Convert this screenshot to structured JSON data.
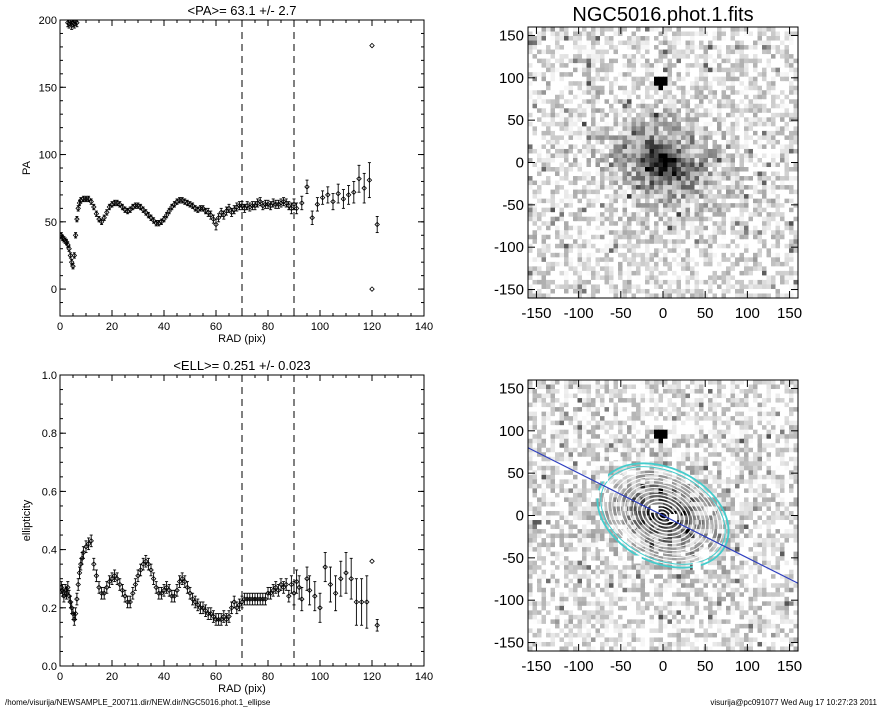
{
  "footer": {
    "left": "/home/visurija/NEWSAMPLE_200711.dir/NEW.dir/NGC5016.phot.1_ellipse",
    "right": "visurija@pc091077  Wed Aug 17 10:27:23 2011"
  },
  "chart_data": [
    {
      "type": "scatter",
      "title": "<PA>=  63.1 +/-   2.7",
      "xlabel": "RAD (pix)",
      "ylabel": "PA",
      "xlim": [
        0,
        140
      ],
      "ylim": [
        -20,
        200
      ],
      "xticks": [
        "0",
        "20",
        "40",
        "60",
        "80",
        "100",
        "120",
        "140"
      ],
      "yticks": [
        "0",
        "50",
        "100",
        "150",
        "200"
      ],
      "vlines": [
        70,
        90
      ],
      "points": [
        [
          0.5,
          40,
          2
        ],
        [
          1,
          38,
          2
        ],
        [
          1.5,
          37,
          2
        ],
        [
          2,
          36,
          2
        ],
        [
          2.5,
          35,
          2
        ],
        [
          3,
          33,
          2
        ],
        [
          3.5,
          30,
          2
        ],
        [
          4,
          25,
          2
        ],
        [
          4.5,
          20,
          2
        ],
        [
          5,
          17,
          2
        ],
        [
          5.5,
          25,
          2
        ],
        [
          6,
          40,
          2
        ],
        [
          6.5,
          52,
          2
        ],
        [
          7,
          60,
          2
        ],
        [
          7.5,
          64,
          2
        ],
        [
          8,
          66,
          2
        ],
        [
          9,
          67,
          2
        ],
        [
          10,
          67,
          2
        ],
        [
          11,
          67,
          2
        ],
        [
          12,
          65,
          2
        ],
        [
          13,
          61,
          2
        ],
        [
          14,
          56,
          2
        ],
        [
          15,
          52,
          2
        ],
        [
          16,
          50,
          2
        ],
        [
          17,
          53,
          2
        ],
        [
          18,
          57,
          2
        ],
        [
          19,
          61,
          2
        ],
        [
          20,
          63,
          2
        ],
        [
          21,
          64,
          2
        ],
        [
          22,
          64,
          2
        ],
        [
          23,
          63,
          2
        ],
        [
          24,
          61,
          2
        ],
        [
          25,
          59,
          2
        ],
        [
          26,
          58,
          2
        ],
        [
          27,
          59,
          2
        ],
        [
          28,
          61,
          2
        ],
        [
          29,
          62,
          2
        ],
        [
          30,
          62,
          2
        ],
        [
          31,
          61,
          2
        ],
        [
          32,
          59,
          2
        ],
        [
          33,
          57,
          2
        ],
        [
          34,
          55,
          2
        ],
        [
          35,
          53,
          2
        ],
        [
          36,
          51,
          2
        ],
        [
          37,
          49,
          2
        ],
        [
          38,
          49,
          2
        ],
        [
          39,
          50,
          2
        ],
        [
          40,
          52,
          2
        ],
        [
          41,
          55,
          2
        ],
        [
          42,
          58,
          2
        ],
        [
          43,
          61,
          2
        ],
        [
          44,
          63,
          2
        ],
        [
          45,
          65,
          2
        ],
        [
          46,
          66,
          2
        ],
        [
          47,
          66,
          2
        ],
        [
          48,
          65,
          2
        ],
        [
          49,
          64,
          2
        ],
        [
          50,
          63,
          2
        ],
        [
          51,
          62,
          2
        ],
        [
          52,
          60,
          2
        ],
        [
          53,
          59,
          2
        ],
        [
          54,
          60,
          2
        ],
        [
          55,
          60,
          2
        ],
        [
          56,
          58,
          2
        ],
        [
          57,
          57,
          3
        ],
        [
          58,
          55,
          3
        ],
        [
          59,
          52,
          3
        ],
        [
          60,
          48,
          4
        ],
        [
          61,
          53,
          3
        ],
        [
          62,
          57,
          3
        ],
        [
          63,
          55,
          3
        ],
        [
          64,
          58,
          3
        ],
        [
          65,
          60,
          3
        ],
        [
          66,
          57,
          3
        ],
        [
          67,
          59,
          3
        ],
        [
          68,
          61,
          3
        ],
        [
          69,
          62,
          3
        ],
        [
          70,
          62,
          3
        ],
        [
          71,
          60,
          3
        ],
        [
          72,
          62,
          3
        ],
        [
          73,
          61,
          3
        ],
        [
          74,
          62,
          3
        ],
        [
          75,
          62,
          3
        ],
        [
          76,
          64,
          3
        ],
        [
          77,
          65,
          3
        ],
        [
          78,
          62,
          3
        ],
        [
          79,
          63,
          3
        ],
        [
          80,
          63,
          3
        ],
        [
          81,
          62,
          3
        ],
        [
          82,
          64,
          3
        ],
        [
          83,
          63,
          3
        ],
        [
          84,
          63,
          3
        ],
        [
          85,
          64,
          3
        ],
        [
          86,
          65,
          3
        ],
        [
          87,
          64,
          3
        ],
        [
          88,
          62,
          3
        ],
        [
          89,
          60,
          4
        ],
        [
          90,
          63,
          4
        ],
        [
          91,
          60,
          4
        ],
        [
          93,
          64,
          5
        ],
        [
          95,
          76,
          5
        ],
        [
          97,
          53,
          5
        ],
        [
          99,
          63,
          5
        ],
        [
          101,
          68,
          5
        ],
        [
          103,
          70,
          6
        ],
        [
          105,
          65,
          6
        ],
        [
          107,
          71,
          7
        ],
        [
          109,
          67,
          7
        ],
        [
          111,
          70,
          7
        ],
        [
          113,
          72,
          8
        ],
        [
          115,
          82,
          10
        ],
        [
          117,
          75,
          11
        ],
        [
          119,
          81,
          13
        ],
        [
          120,
          181,
          0
        ],
        [
          120,
          0,
          0
        ],
        [
          122,
          48,
          6
        ],
        [
          3,
          198,
          3
        ],
        [
          3.5,
          197,
          3
        ],
        [
          4,
          199,
          3
        ],
        [
          4.5,
          196,
          3
        ],
        [
          5,
          198,
          3
        ],
        [
          5.5,
          197,
          3
        ],
        [
          6,
          199,
          3
        ],
        [
          6.5,
          198,
          3
        ]
      ]
    },
    {
      "type": "heatmap",
      "title": "NGC5016.phot.1.fits",
      "xlim": [
        -160,
        160
      ],
      "ylim": [
        -160,
        160
      ],
      "xticks": [
        "-150",
        "-100",
        "-50",
        "0",
        "50",
        "100",
        "150"
      ],
      "yticks": [
        "-150",
        "-100",
        "-50",
        "0",
        "50",
        "100",
        "150"
      ],
      "colormap": "grayscale"
    },
    {
      "type": "scatter",
      "title": "<ELL>= 0.251 +/-  0.023",
      "xlabel": "RAD (pix)",
      "ylabel": "ellipticity",
      "xlim": [
        0,
        140
      ],
      "ylim": [
        0,
        1
      ],
      "xticks": [
        "0",
        "20",
        "40",
        "60",
        "80",
        "100",
        "120",
        "140"
      ],
      "yticks": [
        "0.0",
        "0.2",
        "0.4",
        "0.6",
        "0.8",
        "1.0"
      ],
      "vlines": [
        70,
        90
      ],
      "points": [
        [
          0.5,
          0.27,
          0.02
        ],
        [
          1,
          0.26,
          0.02
        ],
        [
          1.5,
          0.24,
          0.02
        ],
        [
          2,
          0.26,
          0.02
        ],
        [
          2.5,
          0.25,
          0.02
        ],
        [
          3,
          0.27,
          0.02
        ],
        [
          3.5,
          0.24,
          0.02
        ],
        [
          4,
          0.22,
          0.02
        ],
        [
          4.5,
          0.2,
          0.02
        ],
        [
          5,
          0.18,
          0.02
        ],
        [
          5.5,
          0.16,
          0.02
        ],
        [
          6,
          0.18,
          0.02
        ],
        [
          6.5,
          0.23,
          0.02
        ],
        [
          7,
          0.28,
          0.02
        ],
        [
          7.5,
          0.32,
          0.02
        ],
        [
          8,
          0.35,
          0.02
        ],
        [
          8.5,
          0.37,
          0.02
        ],
        [
          9,
          0.39,
          0.02
        ],
        [
          10,
          0.41,
          0.02
        ],
        [
          11,
          0.42,
          0.02
        ],
        [
          12,
          0.43,
          0.02
        ],
        [
          13,
          0.35,
          0.02
        ],
        [
          14,
          0.31,
          0.02
        ],
        [
          15,
          0.27,
          0.02
        ],
        [
          16,
          0.25,
          0.02
        ],
        [
          17,
          0.25,
          0.02
        ],
        [
          18,
          0.27,
          0.02
        ],
        [
          19,
          0.29,
          0.02
        ],
        [
          20,
          0.3,
          0.02
        ],
        [
          21,
          0.31,
          0.02
        ],
        [
          22,
          0.3,
          0.02
        ],
        [
          23,
          0.28,
          0.02
        ],
        [
          24,
          0.26,
          0.02
        ],
        [
          25,
          0.24,
          0.02
        ],
        [
          26,
          0.22,
          0.02
        ],
        [
          27,
          0.22,
          0.02
        ],
        [
          28,
          0.25,
          0.02
        ],
        [
          29,
          0.28,
          0.02
        ],
        [
          30,
          0.31,
          0.02
        ],
        [
          31,
          0.33,
          0.02
        ],
        [
          32,
          0.35,
          0.02
        ],
        [
          33,
          0.36,
          0.02
        ],
        [
          34,
          0.35,
          0.02
        ],
        [
          35,
          0.33,
          0.02
        ],
        [
          36,
          0.3,
          0.02
        ],
        [
          37,
          0.27,
          0.02
        ],
        [
          38,
          0.25,
          0.02
        ],
        [
          39,
          0.25,
          0.02
        ],
        [
          40,
          0.26,
          0.02
        ],
        [
          41,
          0.27,
          0.02
        ],
        [
          42,
          0.26,
          0.02
        ],
        [
          43,
          0.24,
          0.02
        ],
        [
          44,
          0.24,
          0.02
        ],
        [
          45,
          0.26,
          0.02
        ],
        [
          46,
          0.29,
          0.02
        ],
        [
          47,
          0.3,
          0.02
        ],
        [
          48,
          0.29,
          0.02
        ],
        [
          49,
          0.27,
          0.02
        ],
        [
          50,
          0.25,
          0.02
        ],
        [
          51,
          0.23,
          0.02
        ],
        [
          52,
          0.22,
          0.02
        ],
        [
          53,
          0.21,
          0.02
        ],
        [
          54,
          0.2,
          0.02
        ],
        [
          55,
          0.2,
          0.02
        ],
        [
          56,
          0.19,
          0.02
        ],
        [
          57,
          0.18,
          0.02
        ],
        [
          58,
          0.18,
          0.02
        ],
        [
          59,
          0.17,
          0.02
        ],
        [
          60,
          0.16,
          0.02
        ],
        [
          61,
          0.16,
          0.02
        ],
        [
          62,
          0.16,
          0.02
        ],
        [
          63,
          0.17,
          0.02
        ],
        [
          64,
          0.16,
          0.02
        ],
        [
          65,
          0.17,
          0.02
        ],
        [
          66,
          0.2,
          0.02
        ],
        [
          67,
          0.22,
          0.02
        ],
        [
          68,
          0.2,
          0.02
        ],
        [
          69,
          0.21,
          0.02
        ],
        [
          70,
          0.22,
          0.02
        ],
        [
          71,
          0.23,
          0.02
        ],
        [
          72,
          0.23,
          0.02
        ],
        [
          73,
          0.23,
          0.02
        ],
        [
          74,
          0.23,
          0.02
        ],
        [
          75,
          0.23,
          0.02
        ],
        [
          76,
          0.23,
          0.02
        ],
        [
          77,
          0.23,
          0.02
        ],
        [
          78,
          0.23,
          0.02
        ],
        [
          79,
          0.23,
          0.02
        ],
        [
          80,
          0.25,
          0.02
        ],
        [
          81,
          0.25,
          0.02
        ],
        [
          82,
          0.26,
          0.02
        ],
        [
          83,
          0.27,
          0.02
        ],
        [
          84,
          0.26,
          0.02
        ],
        [
          85,
          0.28,
          0.02
        ],
        [
          86,
          0.27,
          0.02
        ],
        [
          87,
          0.28,
          0.02
        ],
        [
          88,
          0.24,
          0.02
        ],
        [
          89,
          0.28,
          0.03
        ],
        [
          90,
          0.25,
          0.04
        ],
        [
          91,
          0.29,
          0.04
        ],
        [
          92,
          0.27,
          0.04
        ],
        [
          93,
          0.23,
          0.04
        ],
        [
          95,
          0.3,
          0.04
        ],
        [
          96,
          0.26,
          0.05
        ],
        [
          98,
          0.24,
          0.05
        ],
        [
          100,
          0.2,
          0.05
        ],
        [
          102,
          0.34,
          0.05
        ],
        [
          104,
          0.28,
          0.06
        ],
        [
          106,
          0.25,
          0.06
        ],
        [
          108,
          0.3,
          0.06
        ],
        [
          110,
          0.32,
          0.07
        ],
        [
          112,
          0.3,
          0.07
        ],
        [
          114,
          0.22,
          0.08
        ],
        [
          116,
          0.22,
          0.08
        ],
        [
          118,
          0.22,
          0.09
        ],
        [
          120,
          0.36,
          0
        ],
        [
          122,
          0.14,
          0.02
        ]
      ]
    },
    {
      "type": "heatmap",
      "title": "",
      "xlim": [
        -160,
        160
      ],
      "ylim": [
        -160,
        160
      ],
      "xticks": [
        "-150",
        "-100",
        "-50",
        "0",
        "50",
        "100",
        "150"
      ],
      "yticks": [
        "-150",
        "-100",
        "-50",
        "0",
        "50",
        "100",
        "150"
      ],
      "colormap": "grayscale",
      "overlay_line": [
        [
          -160,
          80
        ],
        [
          160,
          -80
        ]
      ],
      "line_color": "#3040c0",
      "contour_color": "#ffffff",
      "outer_contour_color": "#44cccc"
    }
  ]
}
